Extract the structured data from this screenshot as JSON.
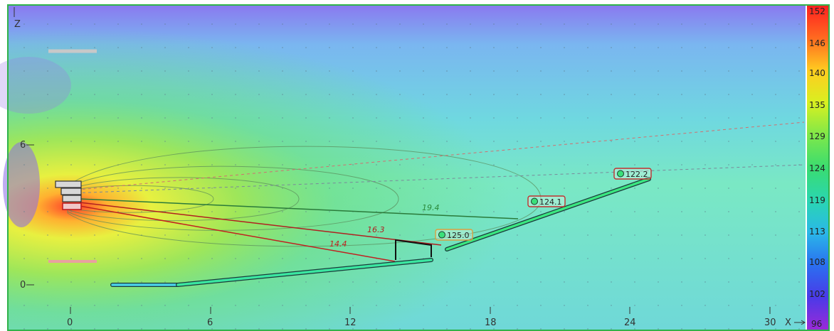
{
  "axes": {
    "z_label": "Z",
    "x_label": "X",
    "x_ticks": [
      "0",
      "6",
      "12",
      "18",
      "24",
      "30"
    ],
    "z_ticks": [
      "6",
      "0"
    ]
  },
  "color_scale": {
    "unit_hint": "dB",
    "labels": [
      "152",
      "146",
      "140",
      "135",
      "129",
      "124",
      "119",
      "113",
      "108",
      "102",
      "96"
    ],
    "colors": [
      "#ff1a1a",
      "#ff7a1a",
      "#ffd21a",
      "#c8f01a",
      "#6fe84a",
      "#2fdc6e",
      "#2fd2b4",
      "#2fb4e6",
      "#2f6ef0",
      "#4a3ce8",
      "#9b2cd6"
    ]
  },
  "rays": [
    {
      "label": "19.4",
      "color": "#2a8a3a"
    },
    {
      "label": "16.3",
      "color": "#b02020"
    },
    {
      "label": "14.4",
      "color": "#c02020"
    }
  ],
  "mics": [
    {
      "label": "125.0"
    },
    {
      "label": "124.1"
    },
    {
      "label": "122.2"
    }
  ]
}
